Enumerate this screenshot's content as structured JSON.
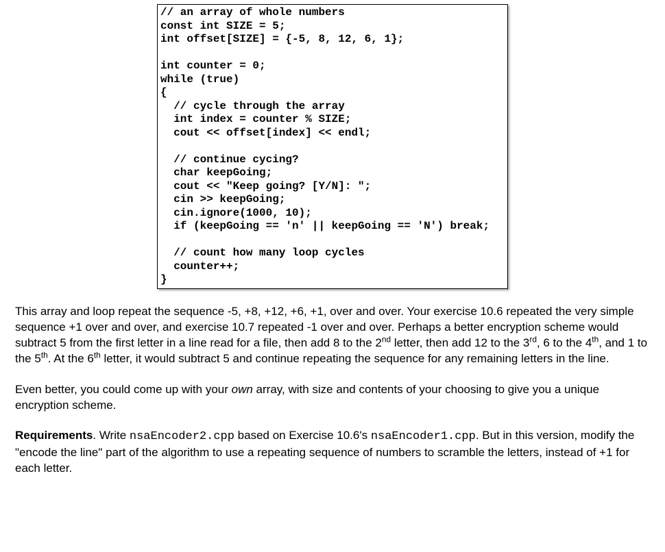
{
  "code": {
    "l01": "// an array of whole numbers",
    "l02": "const int SIZE = 5;",
    "l03": "int offset[SIZE] = {-5, 8, 12, 6, 1};",
    "l04": "",
    "l05": "int counter = 0;",
    "l06": "while (true)",
    "l07": "{",
    "l08": "  // cycle through the array",
    "l09": "  int index = counter % SIZE;",
    "l10": "  cout << offset[index] << endl;",
    "l11": "",
    "l12": "  // continue cycing?",
    "l13": "  char keepGoing;",
    "l14": "  cout << \"Keep going? [Y/N]: \";",
    "l15": "  cin >> keepGoing;",
    "l16": "  cin.ignore(1000, 10);",
    "l17": "  if (keepGoing == 'n' || keepGoing == 'N') break;",
    "l18": "",
    "l19": "  // count how many loop cycles",
    "l20": "  counter++;",
    "l21": "}"
  },
  "para1": {
    "t1": "This array and loop repeat the sequence -5, +8, +12, +6, +1, over and over. Your exercise 10.6 repeated the very simple sequence +1 over and over, and exercise 10.7 repeated -1 over and over. Perhaps a better encryption scheme would subtract 5 from the first letter in a line read for a file, then add 8 to the 2",
    "sup1": "nd",
    "t2": " letter, then add 12 to the 3",
    "sup2": "rd",
    "t3": ", 6 to the 4",
    "sup3": "th",
    "t4": ", and 1 to the 5",
    "sup4": "th",
    "t5": ". At the 6",
    "sup5": "th",
    "t6": " letter, it would subtract 5 and continue repeating the sequence for any remaining letters in the line."
  },
  "para2": {
    "t1": "Even better, you could come up with your ",
    "em1": "own",
    "t2": " array, with size and contents of your choosing to give you a unique encryption scheme."
  },
  "para3": {
    "strong1": "Requirements",
    "t1": ". Write ",
    "mono1": "nsaEncoder2.cpp",
    "t2": " based on Exercise 10.6's ",
    "mono2": "nsaEncoder1.cpp",
    "t3": ". But in this version, modify the \"encode the line\" part of the algorithm to use a repeating sequence of numbers to scramble the letters, instead of +1 for each letter."
  }
}
